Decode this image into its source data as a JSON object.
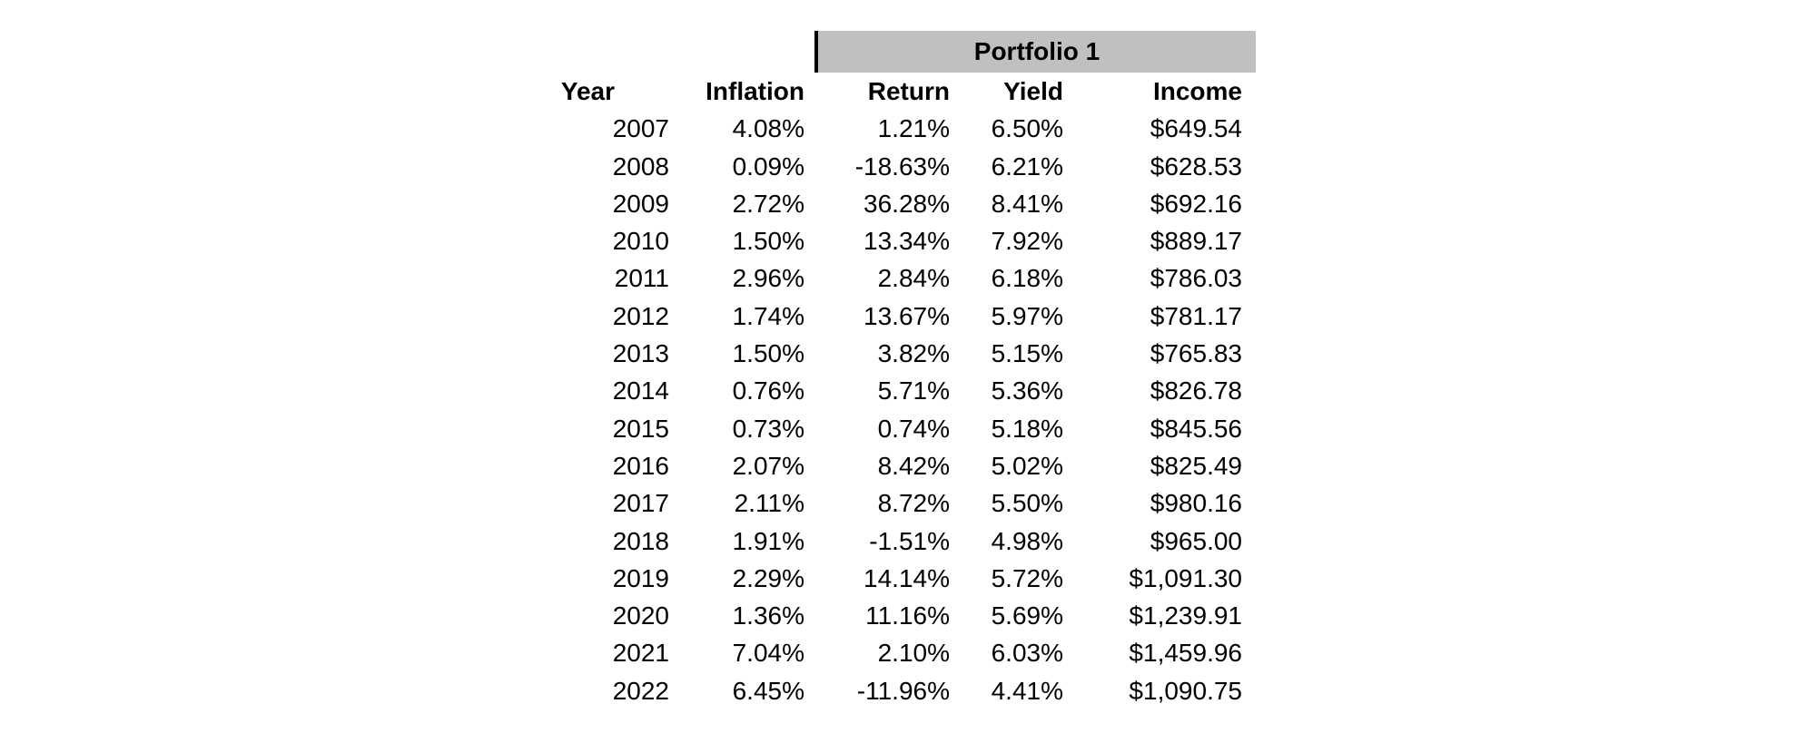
{
  "chart_data": {
    "type": "table",
    "title": "Portfolio 1",
    "group_header": {
      "label": "Portfolio 1",
      "spans_columns": [
        "Return",
        "Yield",
        "Income"
      ]
    },
    "columns": [
      "Year",
      "Inflation",
      "Return",
      "Yield",
      "Income"
    ],
    "rows": [
      [
        "2007",
        "4.08%",
        "1.21%",
        "6.50%",
        "$649.54"
      ],
      [
        "2008",
        "0.09%",
        "-18.63%",
        "6.21%",
        "$628.53"
      ],
      [
        "2009",
        "2.72%",
        "36.28%",
        "8.41%",
        "$692.16"
      ],
      [
        "2010",
        "1.50%",
        "13.34%",
        "7.92%",
        "$889.17"
      ],
      [
        "2011",
        "2.96%",
        "2.84%",
        "6.18%",
        "$786.03"
      ],
      [
        "2012",
        "1.74%",
        "13.67%",
        "5.97%",
        "$781.17"
      ],
      [
        "2013",
        "1.50%",
        "3.82%",
        "5.15%",
        "$765.83"
      ],
      [
        "2014",
        "0.76%",
        "5.71%",
        "5.36%",
        "$826.78"
      ],
      [
        "2015",
        "0.73%",
        "0.74%",
        "5.18%",
        "$845.56"
      ],
      [
        "2016",
        "2.07%",
        "8.42%",
        "5.02%",
        "$825.49"
      ],
      [
        "2017",
        "2.11%",
        "8.72%",
        "5.50%",
        "$980.16"
      ],
      [
        "2018",
        "1.91%",
        "-1.51%",
        "4.98%",
        "$965.00"
      ],
      [
        "2019",
        "2.29%",
        "14.14%",
        "5.72%",
        "$1,091.30"
      ],
      [
        "2020",
        "1.36%",
        "11.16%",
        "5.69%",
        "$1,239.91"
      ],
      [
        "2021",
        "7.04%",
        "2.10%",
        "6.03%",
        "$1,459.96"
      ],
      [
        "2022",
        "6.45%",
        "-11.96%",
        "4.41%",
        "$1,090.75"
      ]
    ],
    "layout_hints": {
      "alignment": "right",
      "gridlines": false,
      "group_header_background": "gray band with black left border"
    }
  },
  "colors": {
    "band_bg": "#c0c0c0",
    "band_border": "#000000",
    "text": "#000000",
    "page_bg": "#ffffff"
  }
}
